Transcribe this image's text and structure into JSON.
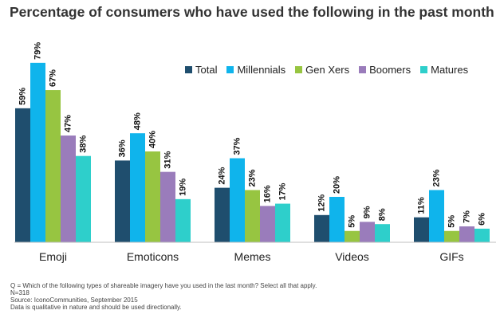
{
  "title": "Percentage of consumers who have used the following in the past month",
  "chart_data": {
    "type": "bar",
    "title": "Percentage of consumers who have used the following in the past month",
    "categories": [
      "Emoji",
      "Emoticons",
      "Memes",
      "Videos",
      "GIFs"
    ],
    "series": [
      {
        "name": "Total",
        "color": "#1F4E6E",
        "values": [
          59,
          36,
          24,
          12,
          11
        ]
      },
      {
        "name": "Millennials",
        "color": "#0FB4EC",
        "values": [
          79,
          48,
          37,
          20,
          23
        ]
      },
      {
        "name": "Gen Xers",
        "color": "#97C541",
        "values": [
          67,
          40,
          23,
          5,
          5
        ]
      },
      {
        "name": "Boomers",
        "color": "#9A7CBB",
        "values": [
          47,
          31,
          16,
          9,
          7
        ]
      },
      {
        "name": "Matures",
        "color": "#2ECFCB",
        "values": [
          38,
          19,
          17,
          8,
          6
        ]
      }
    ],
    "value_suffix": "%",
    "ylim": [
      0,
      80
    ],
    "grid": false,
    "legend_position": "top-right",
    "xlabel": "",
    "ylabel": ""
  },
  "footnotes": [
    "Q = Which of the following types of shareable imagery have you used in the last month? Select all that apply.",
    "N=318",
    "Source: IconoCommunities, September 2015",
    "Data is qualitative in nature and should be used directionally."
  ]
}
